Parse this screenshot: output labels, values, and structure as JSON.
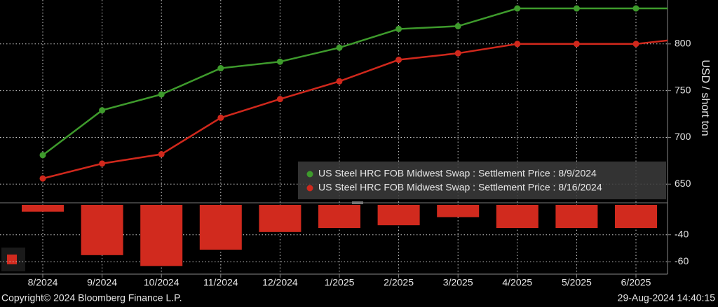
{
  "chart_data": [
    {
      "type": "line",
      "categories": [
        "8/2024",
        "9/2024",
        "10/2024",
        "11/2024",
        "12/2024",
        "1/2025",
        "2/2025",
        "3/2025",
        "4/2025",
        "5/2025",
        "6/2025",
        null
      ],
      "series": [
        {
          "name": "US Steel HRC FOB Midwest Swap : Settlement Price : 8/9/2024",
          "color": "#3e9b2c",
          "values": [
            681,
            729,
            746,
            774,
            781,
            796,
            816,
            819,
            838,
            838,
            838,
            838
          ]
        },
        {
          "name": "US Steel HRC FOB Midwest Swap : Settlement Price : 8/16/2024",
          "color": "#d0281c",
          "values": [
            656,
            672,
            682,
            721,
            741,
            760,
            783,
            790,
            800,
            800,
            800,
            807
          ]
        }
      ],
      "ylabel": "USD / short ton",
      "ylim": [
        630,
        847
      ],
      "yticks": [
        650,
        700,
        750,
        800
      ],
      "grid": true,
      "legend": "lower right"
    },
    {
      "type": "bar",
      "values": [
        -23,
        -55,
        -63,
        -51,
        -38,
        -35,
        -33,
        -27,
        -35,
        -35,
        -35,
        null
      ],
      "color": "#d12a1e",
      "ylim": [
        -69,
        -18
      ],
      "yticks": [
        -40,
        -60
      ],
      "grid": true
    }
  ],
  "footer": {
    "left": "Copyright© 2024 Bloomberg Finance L.P.",
    "right": "29-Aug-2024 14:40:15"
  }
}
